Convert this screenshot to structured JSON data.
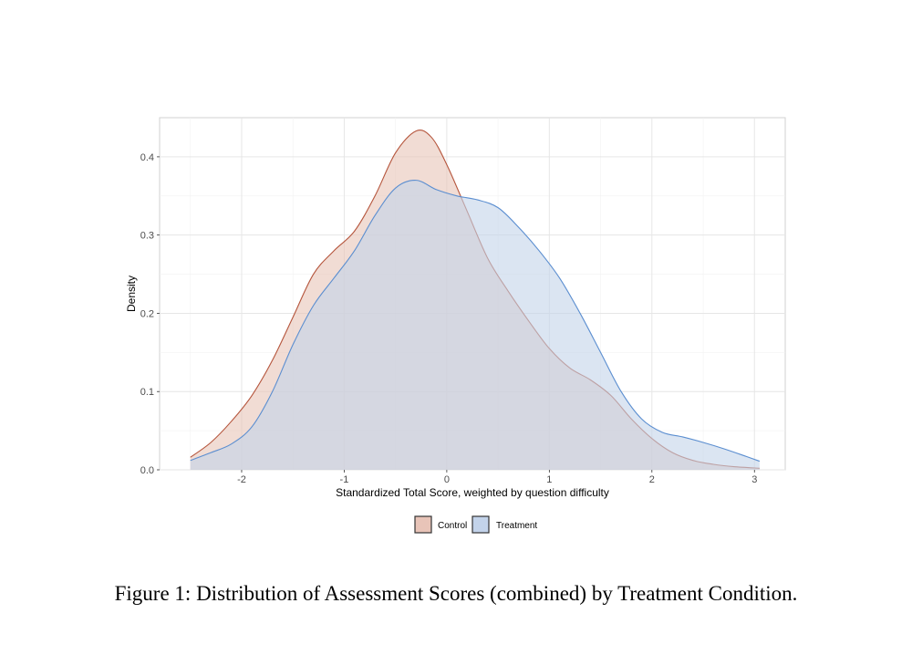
{
  "caption": "Figure 1: Distribution of Assessment Scores (combined) by Treatment Condition.",
  "chart_data": {
    "type": "area",
    "title": "",
    "xlabel": "Standardized Total Score, weighted by question difficulty",
    "ylabel": "Density",
    "xlim": [
      -2.8,
      3.3
    ],
    "ylim": [
      0,
      0.45
    ],
    "x_ticks": [
      -2,
      -1,
      0,
      1,
      2,
      3
    ],
    "y_ticks": [
      0.0,
      0.1,
      0.2,
      0.3,
      0.4
    ],
    "x_tick_labels": [
      "-2",
      "-1",
      "0",
      "1",
      "2",
      "3"
    ],
    "y_tick_labels": [
      "0.0",
      "0.1",
      "0.2",
      "0.3",
      "0.4"
    ],
    "grid": true,
    "legend_position": "bottom",
    "series": [
      {
        "name": "Control",
        "fill": "#e8c4b8",
        "stroke": "#b5553c",
        "points": [
          [
            -2.5,
            0.016
          ],
          [
            -2.3,
            0.035
          ],
          [
            -2.1,
            0.062
          ],
          [
            -1.9,
            0.095
          ],
          [
            -1.7,
            0.14
          ],
          [
            -1.5,
            0.195
          ],
          [
            -1.3,
            0.25
          ],
          [
            -1.1,
            0.28
          ],
          [
            -0.9,
            0.305
          ],
          [
            -0.7,
            0.35
          ],
          [
            -0.5,
            0.405
          ],
          [
            -0.3,
            0.433
          ],
          [
            -0.15,
            0.425
          ],
          [
            0.0,
            0.39
          ],
          [
            0.2,
            0.33
          ],
          [
            0.4,
            0.27
          ],
          [
            0.6,
            0.228
          ],
          [
            0.8,
            0.19
          ],
          [
            1.0,
            0.155
          ],
          [
            1.2,
            0.13
          ],
          [
            1.4,
            0.115
          ],
          [
            1.6,
            0.095
          ],
          [
            1.8,
            0.065
          ],
          [
            2.0,
            0.04
          ],
          [
            2.2,
            0.022
          ],
          [
            2.4,
            0.012
          ],
          [
            2.6,
            0.007
          ],
          [
            2.8,
            0.004
          ],
          [
            3.05,
            0.002
          ]
        ]
      },
      {
        "name": "Treatment",
        "fill": "#c3d3ea",
        "stroke": "#5b8ed0",
        "points": [
          [
            -2.5,
            0.012
          ],
          [
            -2.3,
            0.022
          ],
          [
            -2.1,
            0.033
          ],
          [
            -1.9,
            0.055
          ],
          [
            -1.7,
            0.1
          ],
          [
            -1.5,
            0.16
          ],
          [
            -1.3,
            0.21
          ],
          [
            -1.1,
            0.245
          ],
          [
            -0.9,
            0.28
          ],
          [
            -0.7,
            0.325
          ],
          [
            -0.5,
            0.36
          ],
          [
            -0.3,
            0.37
          ],
          [
            -0.1,
            0.358
          ],
          [
            0.1,
            0.35
          ],
          [
            0.3,
            0.345
          ],
          [
            0.5,
            0.335
          ],
          [
            0.7,
            0.31
          ],
          [
            0.9,
            0.28
          ],
          [
            1.1,
            0.245
          ],
          [
            1.3,
            0.2
          ],
          [
            1.5,
            0.15
          ],
          [
            1.7,
            0.1
          ],
          [
            1.9,
            0.065
          ],
          [
            2.1,
            0.048
          ],
          [
            2.3,
            0.042
          ],
          [
            2.5,
            0.035
          ],
          [
            2.7,
            0.027
          ],
          [
            2.9,
            0.018
          ],
          [
            3.05,
            0.011
          ]
        ]
      }
    ]
  }
}
